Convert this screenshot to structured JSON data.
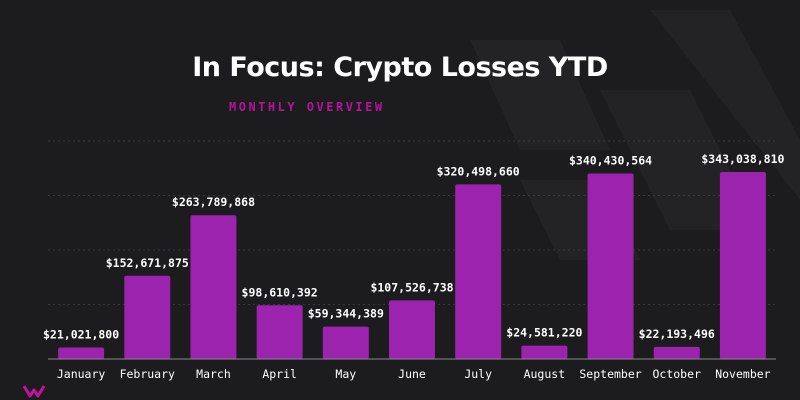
{
  "header": {
    "title": "In Focus: Crypto Losses YTD",
    "subtitle": "MONTHLY OVERVIEW"
  },
  "colors": {
    "background": "#1c1b1d",
    "bar": "#9b23ad",
    "subtitle": "#b5139e",
    "text": "#ffffff",
    "grid": "#3a383c"
  },
  "logo": {
    "icon": "brand-logo-icon"
  },
  "chart_data": {
    "type": "bar",
    "title": "In Focus: Crypto Losses YTD",
    "subtitle": "MONTHLY OVERVIEW",
    "categories": [
      "January",
      "February",
      "March",
      "April",
      "May",
      "June",
      "July",
      "August",
      "September",
      "October",
      "November"
    ],
    "values": [
      21021800,
      152671875,
      263789868,
      98610392,
      59344389,
      107526738,
      320498660,
      24581220,
      340430564,
      22193496,
      343038810
    ],
    "data_labels": [
      "$21,021,800",
      "$152,671,875",
      "$263,789,868",
      "$98,610,392",
      "$59,344,389",
      "$107,526,738",
      "$320,498,660",
      "$24,581,220",
      "$340,430,564",
      "$22,193,496",
      "$343,038,810"
    ],
    "xlabel": "",
    "ylabel": "",
    "ylim": [
      0,
      400000000
    ],
    "grid": true,
    "legend": "none"
  }
}
